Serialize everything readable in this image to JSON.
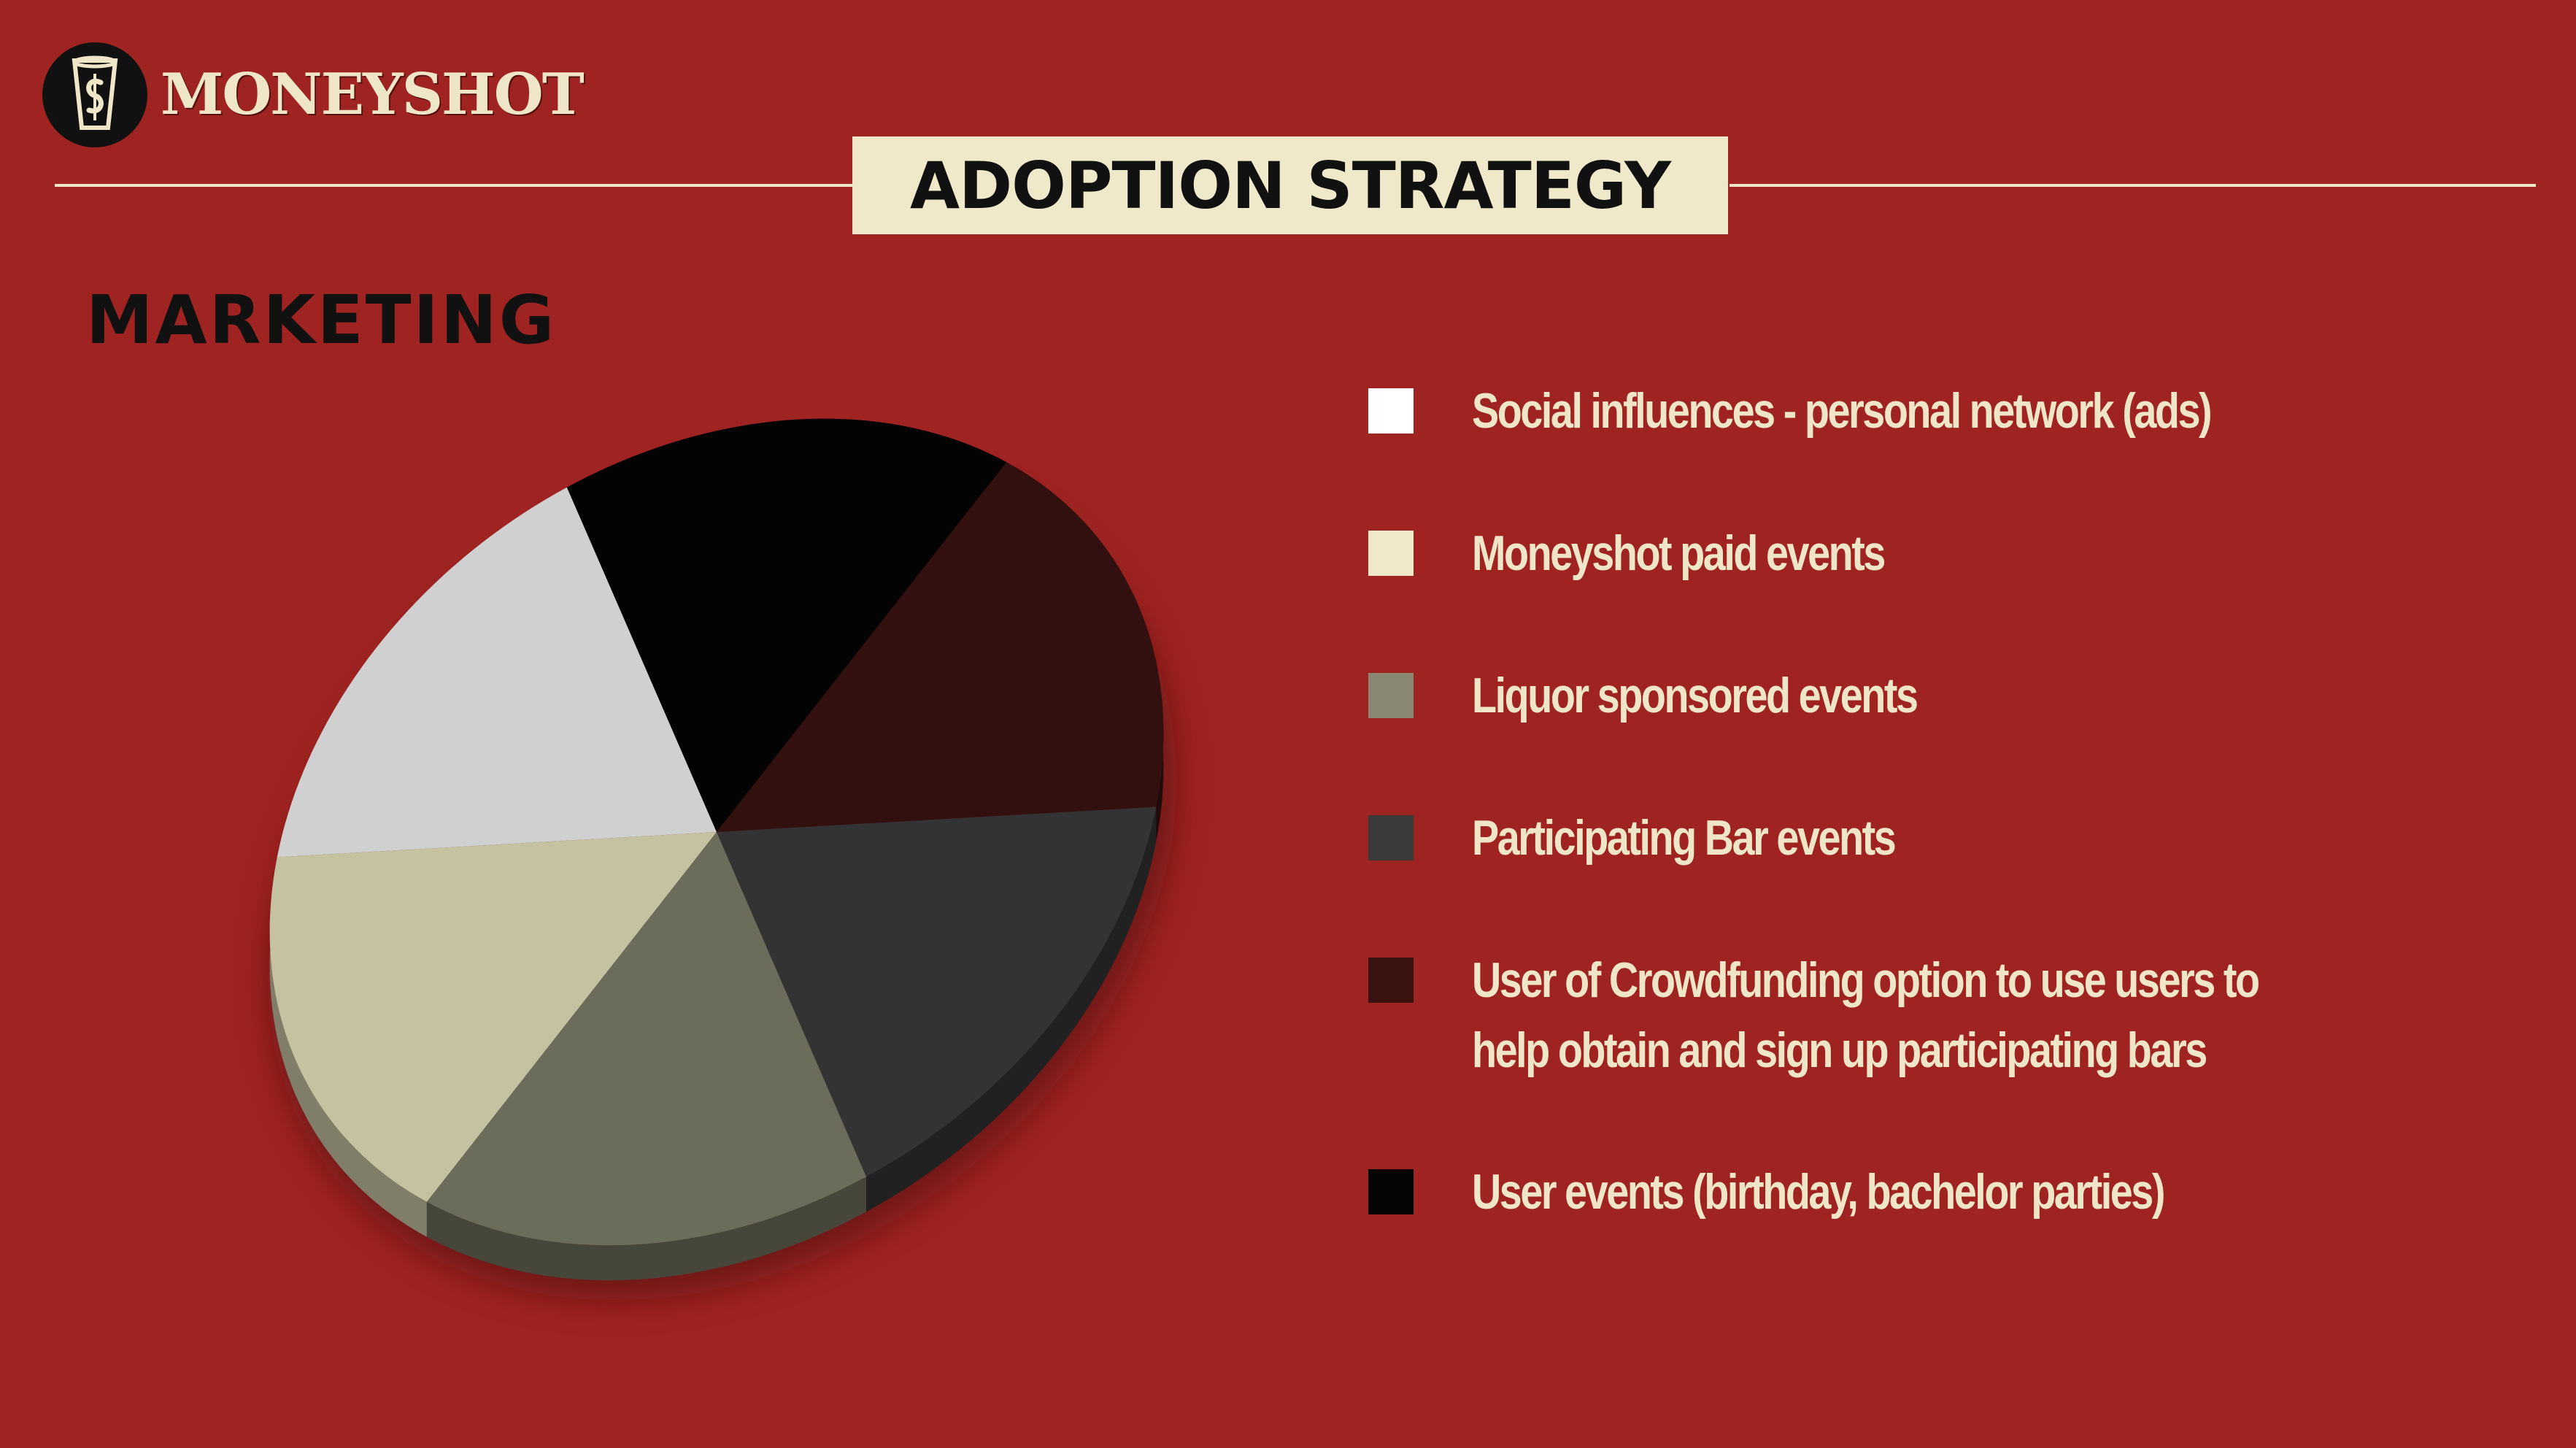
{
  "brand": {
    "logo_text": "MONEYSHOT",
    "logo_icon": "shot-glass-icon",
    "bg_color": "#9f2421",
    "cream_color": "#efe6c7"
  },
  "title": "ADOPTION STRATEGY",
  "section_heading": "MARKETING",
  "chart_data": {
    "type": "pie",
    "title": "",
    "style": "3d-tilted",
    "legend_placement": "right",
    "categories": [
      "Social influences - personal network (ads)",
      "Moneyshot paid events",
      "Liquor sponsored events",
      "Participating Bar events",
      "User of Crowdfunding option to use users to\nhelp obtain and sign up participating bars",
      "User events (birthday, bachelor parties)"
    ],
    "values": [
      16.67,
      16.67,
      16.67,
      16.67,
      16.67,
      16.67
    ],
    "colors": [
      "#d0d0d0",
      "#c5c2a1",
      "#6c6c5b",
      "#333333",
      "#321010",
      "#030303"
    ]
  },
  "legend": [
    {
      "label": "Social influences - personal network (ads)",
      "color": "#ffffff"
    },
    {
      "label": "Moneyshot paid events",
      "color": "#efe8c9"
    },
    {
      "label": "Liquor sponsored events",
      "color": "#8a8873"
    },
    {
      "label": "Participating Bar events",
      "color": "#3a3a3a"
    },
    {
      "label": "User of Crowdfunding option to use users to\nhelp obtain and sign up participating bars",
      "color": "#3a1210"
    },
    {
      "label": "User events (birthday, bachelor parties)",
      "color": "#050505"
    }
  ]
}
